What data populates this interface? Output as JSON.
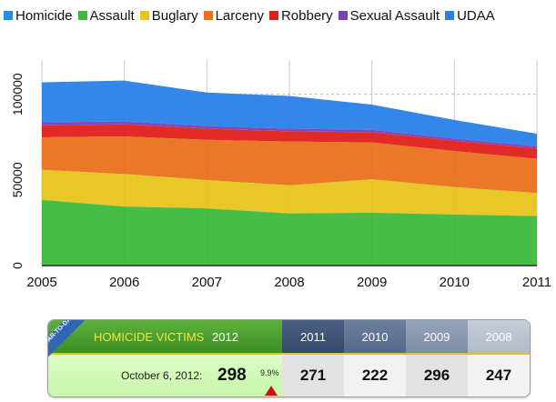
{
  "legend": [
    {
      "name": "Homicide",
      "color": "#1e8ee6"
    },
    {
      "name": "Assault",
      "color": "#3cb93c"
    },
    {
      "name": "Buglary",
      "color": "#e8c41e"
    },
    {
      "name": "Larceny",
      "color": "#e8711c"
    },
    {
      "name": "Robbery",
      "color": "#e0201a"
    },
    {
      "name": "Sexual Assault",
      "color": "#7a40b8"
    },
    {
      "name": "UDAA",
      "color": "#2a7fe8"
    }
  ],
  "chart_data": {
    "type": "area",
    "stacked": true,
    "x": [
      "2005",
      "2006",
      "2007",
      "2008",
      "2009",
      "2010",
      "2011"
    ],
    "ylim": [
      0,
      120000
    ],
    "yticks": [
      "0",
      "50000",
      "100000"
    ],
    "grid": true,
    "legend_position": "top",
    "series": [
      {
        "name": "Homicide",
        "color": "#1e8ee6",
        "values": [
          360,
          420,
          400,
          380,
          360,
          310,
          340
        ]
      },
      {
        "name": "Assault",
        "color": "#3cb93c",
        "values": [
          38000,
          34000,
          33000,
          30000,
          30500,
          29500,
          28500
        ]
      },
      {
        "name": "Buglary",
        "color": "#e8c41e",
        "values": [
          17500,
          19000,
          16500,
          16500,
          19500,
          16000,
          13500
        ]
      },
      {
        "name": "Larceny",
        "color": "#e8711c",
        "values": [
          19000,
          22000,
          23500,
          25500,
          21500,
          21000,
          20000
        ]
      },
      {
        "name": "Robbery",
        "color": "#e0201a",
        "values": [
          7000,
          7000,
          6500,
          6000,
          6000,
          6000,
          6000
        ]
      },
      {
        "name": "Sexual Assault",
        "color": "#7a40b8",
        "values": [
          1800,
          1700,
          1600,
          1500,
          1400,
          1300,
          1300
        ]
      },
      {
        "name": "UDAA",
        "color": "#2a7fe8",
        "values": [
          23340,
          23880,
          19500,
          19120,
          14740,
          10890,
          7360
        ]
      }
    ]
  },
  "ytd": {
    "badge": "YEAR-TO-DATE",
    "label": "HOMICIDE VICTIMS",
    "current_year": "2012",
    "date_label": "October 6, 2012:",
    "current_value": "298",
    "change": "9.9%",
    "prior_years": [
      {
        "year": "2011",
        "value": "271"
      },
      {
        "year": "2010",
        "value": "222"
      },
      {
        "year": "2009",
        "value": "296"
      },
      {
        "year": "2008",
        "value": "247"
      }
    ]
  }
}
